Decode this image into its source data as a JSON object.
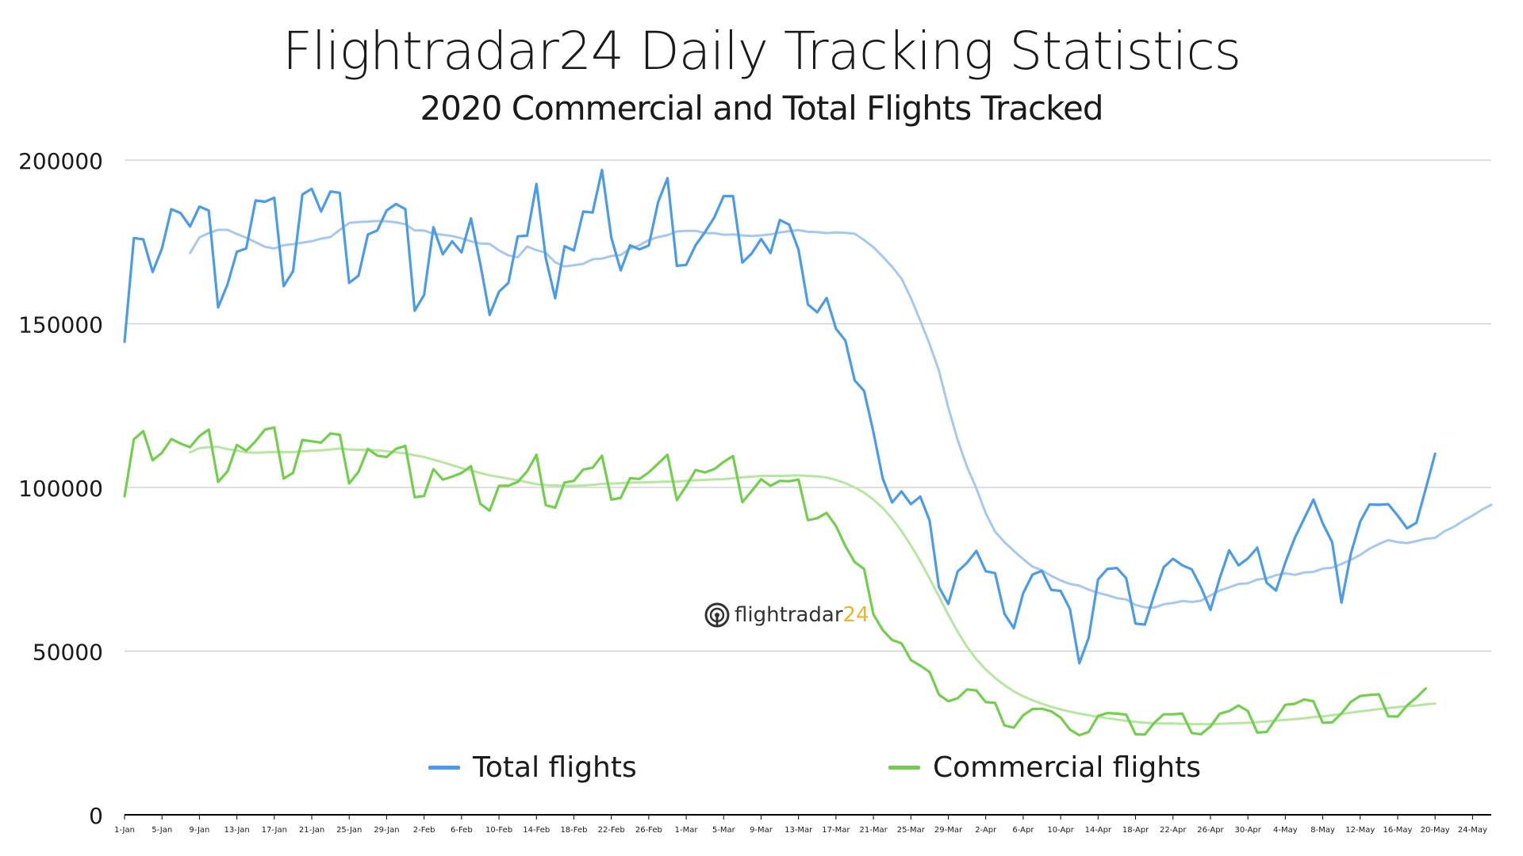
{
  "header": {
    "title": "Flightradar24 Daily Tracking Statistics",
    "subtitle": "2020 Commercial and Total Flights Tracked"
  },
  "logo": {
    "text_main": "flightradar",
    "text_accent": "24"
  },
  "colors": {
    "total": "#4a9be8",
    "total_trend": "#a6c8ee",
    "commercial": "#72cf4e",
    "commercial_trend": "#b7e6a0",
    "grid": "#cccccc",
    "axis": "#000000"
  },
  "chart_data": {
    "type": "line",
    "title": "Flightradar24 Daily Tracking Statistics",
    "subtitle": "2020 Commercial and Total Flights Tracked",
    "ylim": [
      0,
      200000
    ],
    "yticks": [
      0,
      50000,
      100000,
      150000,
      200000
    ],
    "grid": true,
    "legend_position": "bottom",
    "x_tick_labels": [
      "1-Jan",
      "5-Jan",
      "9-Jan",
      "13-Jan",
      "17-Jan",
      "21-Jan",
      "25-Jan",
      "29-Jan",
      "2-Feb",
      "6-Feb",
      "10-Feb",
      "14-Feb",
      "18-Feb",
      "22-Feb",
      "26-Feb",
      "1-Mar",
      "5-Mar",
      "9-Mar",
      "13-Mar",
      "17-Mar",
      "21-Mar",
      "25-Mar",
      "29-Mar",
      "2-Apr",
      "6-Apr",
      "10-Apr",
      "14-Apr",
      "18-Apr",
      "22-Apr",
      "26-Apr",
      "30-Apr",
      "4-May",
      "8-May",
      "12-May",
      "16-May",
      "20-May",
      "24-May"
    ],
    "x_start_date": "2020-01-01",
    "series": [
      {
        "name": "Total flights",
        "key": "total",
        "values": [
          144500,
          176200,
          175800,
          165800,
          173000,
          185000,
          183800,
          179700,
          185800,
          184600,
          155000,
          162000,
          172000,
          173000,
          187700,
          187300,
          188500,
          161500,
          166000,
          189500,
          191200,
          184300,
          190400,
          190000,
          162500,
          164700,
          177300,
          178500,
          184600,
          186600,
          185000,
          154000,
          158800,
          179500,
          171200,
          175200,
          171800,
          182200,
          168300,
          152700,
          159800,
          162500,
          176700,
          176900,
          192700,
          170000,
          157800,
          173700,
          172400,
          184300,
          184000,
          197000,
          176300,
          166300,
          174000,
          172700,
          173900,
          187200,
          194500,
          167700,
          168000,
          174000,
          178000,
          182500,
          189000,
          189000,
          168700,
          171500,
          175900,
          171600,
          181700,
          180300,
          172600,
          155900,
          153500,
          157900,
          148500,
          144900,
          132700,
          129500,
          116900,
          102700,
          95400,
          98800,
          94900,
          97200,
          89900,
          69600,
          64400,
          74300,
          77000,
          80600,
          74400,
          73800,
          61400,
          57000,
          67700,
          73400,
          74500,
          68700,
          68400,
          62800,
          46300,
          54100,
          71900,
          75100,
          75400,
          72300,
          58400,
          58100,
          67300,
          75600,
          78200,
          76200,
          75000,
          69400,
          62600,
          72400,
          80800,
          76200,
          78300,
          81600,
          70900,
          68500,
          77100,
          84500,
          90400,
          96300,
          89000,
          83300,
          64800,
          79800,
          89600,
          94800,
          94700,
          94900,
          91400,
          87500,
          89200,
          99600,
          110300
        ]
      },
      {
        "name": "Total flights (trend)",
        "key": "total_trend",
        "start_index": 7,
        "values": [
          171600,
          176400,
          177700,
          178700,
          178700,
          177400,
          176300,
          174900,
          173500,
          173000,
          174000,
          174300,
          174800,
          175200,
          176000,
          176500,
          178700,
          180800,
          181100,
          181200,
          181400,
          181300,
          181000,
          180400,
          178500,
          178500,
          177500,
          177200,
          176800,
          176100,
          175200,
          174500,
          174400,
          172400,
          170900,
          170300,
          173600,
          172500,
          171700,
          168800,
          167500,
          167900,
          168300,
          169700,
          169900,
          170700,
          171000,
          173000,
          174000,
          175600,
          176500,
          177100,
          178200,
          178400,
          178400,
          177700,
          177700,
          177200,
          177300,
          177000,
          176800,
          177000,
          177300,
          177900,
          178300,
          178600,
          178100,
          178000,
          177700,
          177900,
          177800,
          177500,
          175600,
          173400,
          170500,
          167400,
          163800,
          157900,
          151000,
          143800,
          135700,
          124400,
          114500,
          106300,
          99700,
          92100,
          86500,
          83300,
          80600,
          78100,
          75800,
          74700,
          73000,
          71600,
          70500,
          70000,
          68800,
          67800,
          67100,
          66200,
          65800,
          64100,
          63400,
          63300,
          64300,
          64700,
          65300,
          65000,
          65400,
          67000,
          68500,
          69500,
          70500,
          70700,
          71900,
          72200,
          73200,
          73800,
          73300,
          74000,
          74200,
          75200,
          75500,
          76600,
          77900,
          79400,
          81300,
          82700,
          83900,
          83300,
          83000,
          83600,
          84300,
          84600,
          86600,
          88000,
          89800,
          91400,
          93200,
          94700
        ]
      },
      {
        "name": "Commercial flights",
        "key": "commercial",
        "values": [
          97300,
          114700,
          117200,
          108300,
          110600,
          114800,
          113400,
          112300,
          115700,
          117700,
          101700,
          104900,
          113000,
          111200,
          114100,
          117700,
          118300,
          102700,
          104400,
          114500,
          114100,
          113700,
          116500,
          116100,
          101200,
          104800,
          111800,
          109700,
          109300,
          111800,
          112700,
          97000,
          97400,
          105600,
          102400,
          103300,
          104400,
          106500,
          95000,
          92900,
          100500,
          100500,
          101700,
          104900,
          110000,
          94600,
          93800,
          101500,
          102000,
          105500,
          106000,
          109700,
          96300,
          96800,
          102800,
          102600,
          104600,
          107300,
          110000,
          96100,
          100400,
          105300,
          104600,
          105600,
          107800,
          109600,
          95500,
          98900,
          102500,
          100500,
          102000,
          101900,
          102400,
          90000,
          90600,
          92200,
          88200,
          82100,
          77200,
          75100,
          61200,
          56400,
          53400,
          52400,
          47300,
          45600,
          43600,
          36700,
          34700,
          35600,
          38300,
          38000,
          34400,
          34200,
          27300,
          26600,
          30400,
          32300,
          32400,
          31600,
          29700,
          26000,
          24300,
          25300,
          30200,
          31100,
          30900,
          30600,
          24600,
          24500,
          28100,
          30700,
          30700,
          30900,
          25000,
          24600,
          27000,
          30900,
          31700,
          33400,
          31700,
          25100,
          25300,
          29400,
          33600,
          33900,
          35200,
          34700,
          28100,
          28200,
          31000,
          34500,
          36300,
          36600,
          36800,
          30100,
          30000,
          33400,
          35800,
          38600
        ]
      },
      {
        "name": "Commercial flights (trend)",
        "key": "commercial_trend",
        "start_index": 7,
        "values": [
          110700,
          112000,
          112300,
          112400,
          111700,
          111300,
          110700,
          110600,
          110700,
          110800,
          110800,
          110800,
          111000,
          111200,
          111300,
          111600,
          111900,
          111600,
          111500,
          111500,
          111300,
          111100,
          110700,
          110400,
          109800,
          109300,
          108500,
          107700,
          106800,
          105900,
          105200,
          104400,
          103700,
          103200,
          102700,
          102200,
          101600,
          101000,
          100700,
          100600,
          100500,
          100500,
          100600,
          100800,
          101100,
          101200,
          101300,
          101500,
          101500,
          101600,
          101700,
          101800,
          101800,
          102000,
          102200,
          102300,
          102500,
          102500,
          102800,
          103100,
          103300,
          103500,
          103500,
          103500,
          103600,
          103700,
          103500,
          103400,
          103000,
          102300,
          101300,
          100000,
          98400,
          96300,
          93700,
          90500,
          86700,
          82300,
          77500,
          72200,
          66700,
          61100,
          55900,
          51300,
          47500,
          44400,
          41800,
          39600,
          37700,
          36200,
          35000,
          33900,
          33000,
          32200,
          31500,
          30900,
          30400,
          29900,
          29500,
          29100,
          28700,
          28400,
          28100,
          27900,
          27900,
          27900,
          27800,
          27700,
          27700,
          27700,
          27800,
          27900,
          28000,
          28100,
          28300,
          28500,
          28800,
          29000,
          29200,
          29500,
          29800,
          30100,
          30400,
          30800,
          31200,
          31600,
          31900,
          32300,
          32600,
          32900,
          33200,
          33400,
          33700,
          34000
        ]
      }
    ],
    "legend": [
      {
        "label": "Total flights",
        "key": "total"
      },
      {
        "label": "Commercial flights",
        "key": "commercial"
      }
    ]
  }
}
